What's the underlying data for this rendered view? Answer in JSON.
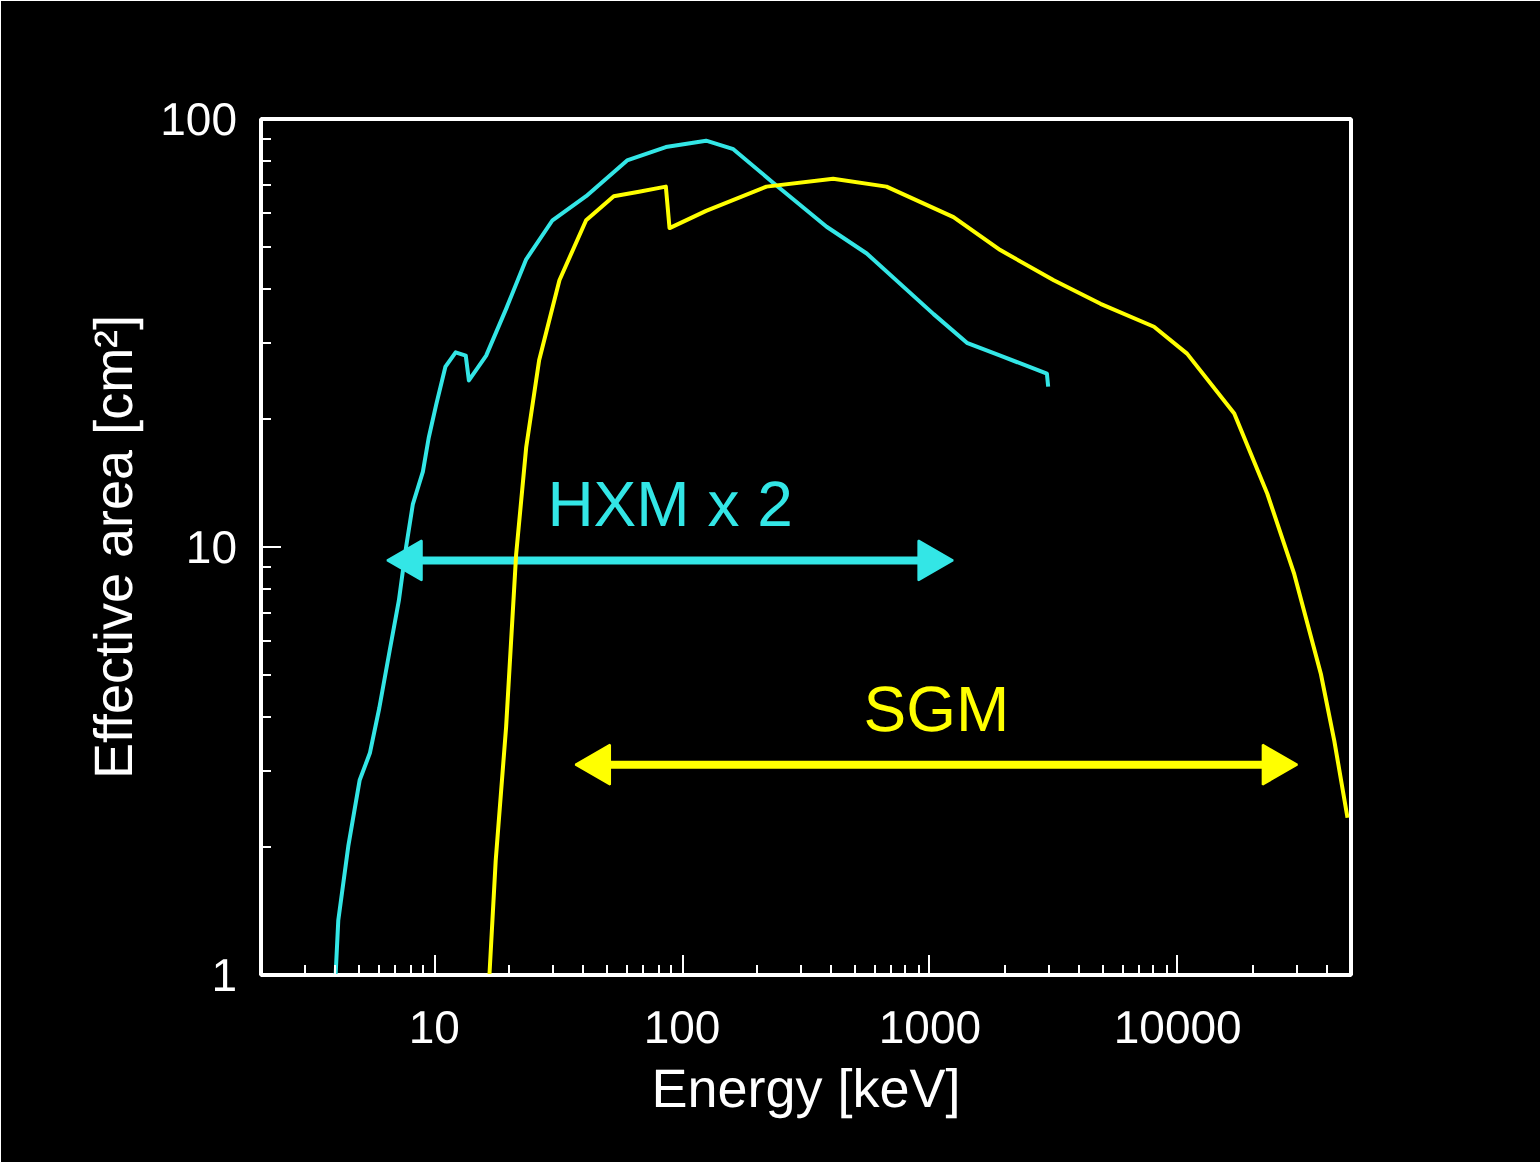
{
  "chart_data": {
    "type": "line",
    "xlabel": "Energy [keV]",
    "ylabel": "Effective area [cm²]",
    "log": "xy",
    "grid": false,
    "xlim": [
      2,
      50000
    ],
    "ylim": [
      1,
      100
    ],
    "xticks": [
      10,
      100,
      1000,
      10000
    ],
    "yticks": [
      1,
      10,
      100
    ],
    "series": [
      {
        "color": "#33e6e6",
        "x": [
          4.0,
          4.1,
          4.5,
          5.0,
          5.5,
          6.0,
          6.6,
          7.2,
          7.7,
          8.2,
          9.0,
          9.5,
          10.2,
          11.1,
          12.2,
          13.4,
          13.8,
          16.2,
          19.5,
          23.5,
          30,
          41,
          60,
          86,
          125,
          161,
          233,
          383,
          556,
          1035,
          1410,
          1923,
          2965,
          3000
        ],
        "values": [
          1.0,
          1.34,
          2.0,
          2.85,
          3.3,
          4.2,
          5.7,
          7.5,
          10,
          12.6,
          15,
          18,
          21.6,
          26.4,
          28.5,
          28,
          24.5,
          28,
          36,
          47,
          58,
          66,
          80,
          86,
          89,
          85,
          71,
          56,
          48.5,
          35,
          30,
          28,
          25.4,
          23.7
        ]
      },
      {
        "name": "HXM x 2",
        "color": "#33e6e6",
        "marker": "triangle",
        "x": [
          8,
          1000
        ],
        "values": [
          9.3,
          9.3
        ]
      },
      {
        "name": "SGM",
        "color": "#ffff00",
        "marker": "triangle",
        "x": [
          46,
          24500
        ],
        "values": [
          3.1,
          3.1
        ]
      },
      {
        "color": "#ffff00",
        "x": [
          16.7,
          17.7,
          19.5,
          21.4,
          23.5,
          26.5,
          32,
          41,
          53,
          67,
          86,
          89,
          125,
          219,
          407,
          668,
          1245,
          1923,
          3160,
          4880,
          8020,
          10900,
          16900,
          23000,
          29500,
          37800,
          42800,
          48400
        ],
        "values": [
          1.0,
          1.85,
          3.8,
          9.6,
          17.1,
          27.3,
          42,
          58,
          66,
          67.6,
          69.5,
          55.6,
          61,
          69.5,
          72.5,
          69.5,
          59,
          49.4,
          42,
          37,
          32.7,
          28.3,
          20.5,
          13.3,
          8.65,
          5.05,
          3.53,
          2.33
        ]
      }
    ]
  }
}
